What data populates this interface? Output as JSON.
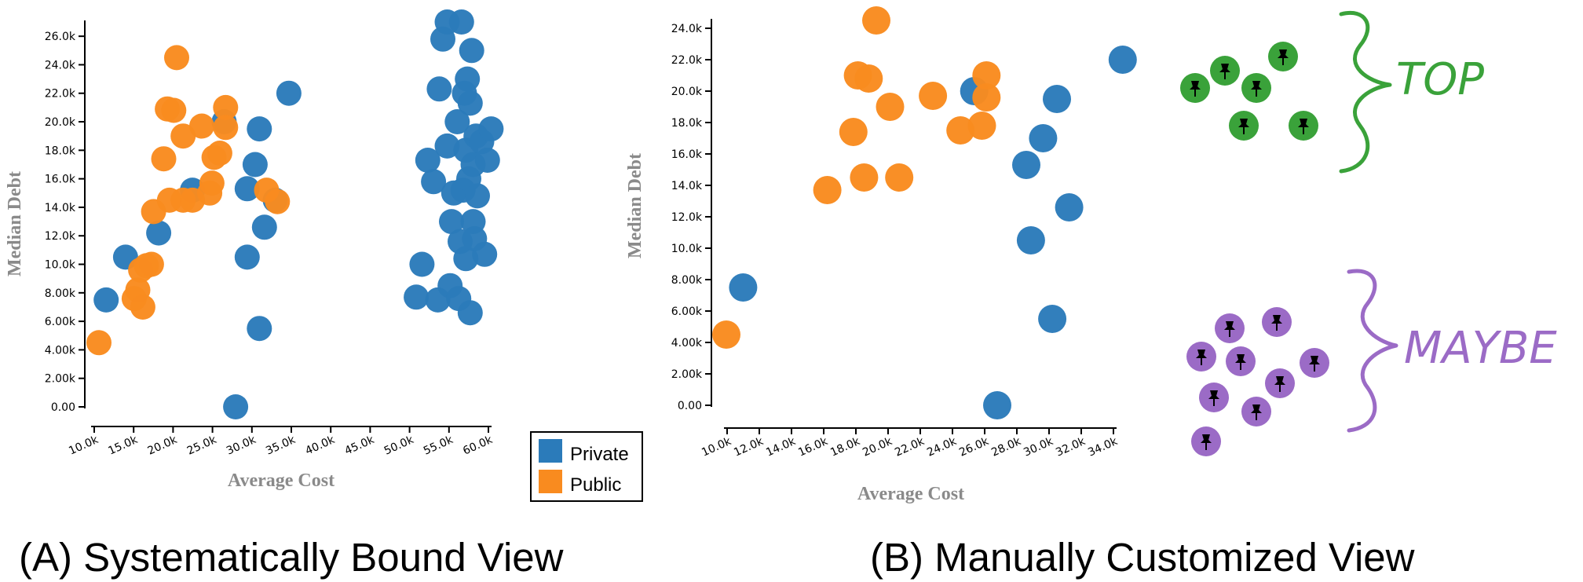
{
  "colors": {
    "private": "#2b7bba",
    "public": "#f98b1f",
    "top": "#3aa23a",
    "maybe": "#9b6bc6",
    "axis_title": "#8a8a8a"
  },
  "chart_data": [
    {
      "type": "scatter",
      "panel": "A",
      "caption": "(A) Systematically Bound View",
      "xlabel": "Average Cost",
      "ylabel": "Median Debt",
      "xlim": [
        8000,
        63000
      ],
      "ylim": [
        0,
        27000
      ],
      "x_ticks": [
        10000,
        15000,
        20000,
        25000,
        30000,
        35000,
        40000,
        45000,
        50000,
        55000,
        60000
      ],
      "x_tick_labels": [
        "10.0k",
        "15.0k",
        "20.0k",
        "25.0k",
        "30.0k",
        "35.0k",
        "40.0k",
        "45.0k",
        "50.0k",
        "55.0k",
        "60.0k"
      ],
      "y_ticks": [
        0,
        2000,
        4000,
        6000,
        8000,
        10000,
        12000,
        14000,
        16000,
        18000,
        20000,
        22000,
        24000,
        26000
      ],
      "y_tick_labels": [
        "0.00",
        "2.00k",
        "4.00k",
        "6.00k",
        "8.00k",
        "10.0k",
        "12.0k",
        "14.0k",
        "16.0k",
        "18.0k",
        "20.0k",
        "22.0k",
        "24.0k",
        "26.0k"
      ],
      "legend": {
        "position": "bottom-right",
        "entries": [
          {
            "label": "Private",
            "color": "private"
          },
          {
            "label": "Public",
            "color": "public"
          }
        ]
      },
      "series": [
        {
          "name": "Private",
          "color": "private",
          "points": [
            [
              9000,
              7500
            ],
            [
              11700,
              10500
            ],
            [
              16300,
              12200
            ],
            [
              21000,
              15200
            ],
            [
              25400,
              20000
            ],
            [
              27000,
              0
            ],
            [
              28600,
              10500
            ],
            [
              28600,
              15300
            ],
            [
              29700,
              17000
            ],
            [
              30300,
              19500
            ],
            [
              30300,
              5500
            ],
            [
              31000,
              12600
            ],
            [
              32500,
              14500
            ],
            [
              34400,
              22000
            ],
            [
              52100,
              7700
            ],
            [
              52900,
              10000
            ],
            [
              53700,
              17300
            ],
            [
              54500,
              15800
            ],
            [
              55100,
              7500
            ],
            [
              55300,
              22300
            ],
            [
              55800,
              25800
            ],
            [
              56400,
              27000
            ],
            [
              56400,
              18300
            ],
            [
              56800,
              8500
            ],
            [
              57000,
              13000
            ],
            [
              57300,
              15000
            ],
            [
              57800,
              20000
            ],
            [
              58000,
              7600
            ],
            [
              58200,
              11600
            ],
            [
              58400,
              27000
            ],
            [
              58600,
              15200
            ],
            [
              58800,
              22000
            ],
            [
              59000,
              18000
            ],
            [
              59000,
              10400
            ],
            [
              59200,
              23000
            ],
            [
              59400,
              16000
            ],
            [
              59600,
              6600
            ],
            [
              59600,
              21300
            ],
            [
              59800,
              25000
            ],
            [
              60000,
              17000
            ],
            [
              60000,
              13000
            ],
            [
              60200,
              11800
            ],
            [
              60400,
              19000
            ],
            [
              60600,
              14800
            ],
            [
              61200,
              18600
            ],
            [
              61600,
              10700
            ],
            [
              62000,
              17300
            ],
            [
              62500,
              19500
            ]
          ]
        },
        {
          "name": "Public",
          "color": "public",
          "points": [
            [
              8000,
              4500
            ],
            [
              12900,
              7600
            ],
            [
              13400,
              8200
            ],
            [
              13800,
              9600
            ],
            [
              14100,
              7000
            ],
            [
              14600,
              9900
            ],
            [
              15300,
              10000
            ],
            [
              15600,
              13700
            ],
            [
              17000,
              17400
            ],
            [
              17500,
              20900
            ],
            [
              17800,
              14500
            ],
            [
              18400,
              20800
            ],
            [
              18800,
              24500
            ],
            [
              19700,
              19000
            ],
            [
              19700,
              14500
            ],
            [
              21000,
              14500
            ],
            [
              22300,
              19700
            ],
            [
              23400,
              15000
            ],
            [
              23700,
              15700
            ],
            [
              24000,
              17500
            ],
            [
              24800,
              17800
            ],
            [
              25600,
              21000
            ],
            [
              25600,
              19600
            ],
            [
              31300,
              15200
            ],
            [
              32800,
              14400
            ]
          ]
        }
      ]
    },
    {
      "type": "scatter",
      "panel": "B",
      "caption": "(B) Manually Customized View",
      "xlabel": "Average Cost",
      "ylabel": "Median Debt",
      "xlim": [
        9000,
        34500
      ],
      "ylim": [
        0,
        24500
      ],
      "x_ticks": [
        10000,
        12000,
        14000,
        16000,
        18000,
        20000,
        22000,
        24000,
        26000,
        28000,
        30000,
        32000,
        34000
      ],
      "x_tick_labels": [
        "10.0k",
        "12.0k",
        "14.0k",
        "16.0k",
        "18.0k",
        "20.0k",
        "22.0k",
        "24.0k",
        "26.0k",
        "28.0k",
        "30.0k",
        "32.0k",
        "34.0k"
      ],
      "y_ticks": [
        0,
        2000,
        4000,
        6000,
        8000,
        10000,
        12000,
        14000,
        16000,
        18000,
        20000,
        22000,
        24000
      ],
      "y_tick_labels": [
        "0.00",
        "2.00k",
        "4.00k",
        "6.00k",
        "8.00k",
        "10.0k",
        "12.0k",
        "14.0k",
        "16.0k",
        "18.0k",
        "20.0k",
        "22.0k",
        "24.0k"
      ],
      "series": [
        {
          "name": "Private",
          "color": "private",
          "points": [
            [
              10100,
              7500
            ],
            [
              25200,
              20000
            ],
            [
              26700,
              0
            ],
            [
              28600,
              15300
            ],
            [
              28900,
              10500
            ],
            [
              29700,
              17000
            ],
            [
              30300,
              5500
            ],
            [
              30600,
              19500
            ],
            [
              31400,
              12600
            ],
            [
              34900,
              22000
            ]
          ]
        },
        {
          "name": "Public",
          "color": "public",
          "points": [
            [
              9000,
              4500
            ],
            [
              15600,
              13700
            ],
            [
              17300,
              17400
            ],
            [
              17600,
              21000
            ],
            [
              18000,
              14500
            ],
            [
              18300,
              20800
            ],
            [
              18800,
              24500
            ],
            [
              19700,
              19000
            ],
            [
              20300,
              14500
            ],
            [
              22500,
              19700
            ],
            [
              24300,
              17500
            ],
            [
              25700,
              17800
            ],
            [
              26000,
              19600
            ],
            [
              26000,
              21000
            ]
          ]
        }
      ],
      "annotations": {
        "top": {
          "label": "TOP",
          "count": 6
        },
        "maybe": {
          "label": "MAYBE",
          "count": 9
        }
      }
    }
  ]
}
